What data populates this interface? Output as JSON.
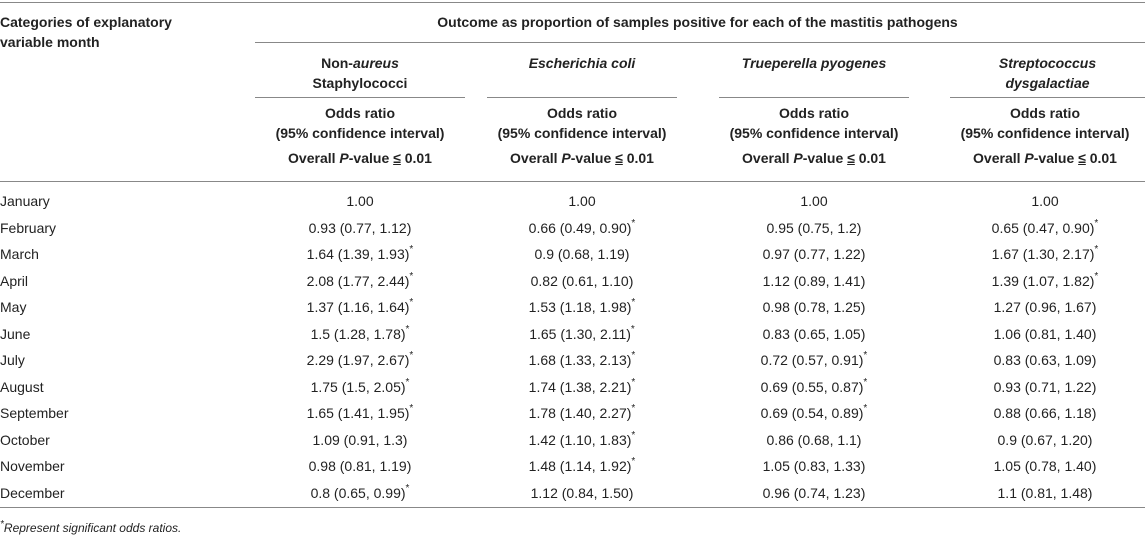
{
  "header": {
    "category_label_line1": "Categories of explanatory",
    "category_label_line2": "variable month",
    "title": "Outcome as proportion of samples positive for each of the mastitis pathogens"
  },
  "columns": [
    {
      "name_line1_pre": "Non-",
      "name_line1_italic": "aureus",
      "name_line2": "Staphylococci"
    },
    {
      "name_line1_italic": "Escherichia coli"
    },
    {
      "name_line1_italic": "Trueperella pyogenes"
    },
    {
      "name_line1_italic": "Streptococcus",
      "name_line2_italic": "dysgalactiae"
    }
  ],
  "subheader": {
    "odds_line1": "Odds ratio",
    "odds_line2": "(95% confidence interval)",
    "pval_pre": "Overall ",
    "pval_italic": "P",
    "pval_mid": "-value ",
    "pval_op": "≤",
    "pval_val": " 0.01"
  },
  "rows": [
    {
      "month": "January",
      "vals": [
        "1.00",
        "1.00",
        "1.00",
        "1.00"
      ],
      "sig": [
        false,
        false,
        false,
        false
      ]
    },
    {
      "month": "February",
      "vals": [
        "0.93 (0.77, 1.12)",
        "0.66 (0.49, 0.90)",
        "0.95 (0.75, 1.2)",
        "0.65 (0.47, 0.90)"
      ],
      "sig": [
        false,
        true,
        false,
        true
      ]
    },
    {
      "month": "March",
      "vals": [
        "1.64 (1.39, 1.93)",
        "0.9 (0.68, 1.19)",
        "0.97 (0.77, 1.22)",
        "1.67 (1.30, 2.17)"
      ],
      "sig": [
        true,
        false,
        false,
        true
      ]
    },
    {
      "month": "April",
      "vals": [
        "2.08 (1.77, 2.44)",
        "0.82 (0.61, 1.10)",
        "1.12 (0.89, 1.41)",
        "1.39 (1.07, 1.82)"
      ],
      "sig": [
        true,
        false,
        false,
        true
      ]
    },
    {
      "month": "May",
      "vals": [
        "1.37 (1.16, 1.64)",
        "1.53 (1.18, 1.98)",
        "0.98 (0.78, 1.25)",
        "1.27 (0.96, 1.67)"
      ],
      "sig": [
        true,
        true,
        false,
        false
      ]
    },
    {
      "month": "June",
      "vals": [
        "1.5 (1.28, 1.78)",
        "1.65 (1.30, 2.11)",
        "0.83 (0.65, 1.05)",
        "1.06 (0.81, 1.40)"
      ],
      "sig": [
        true,
        true,
        false,
        false
      ]
    },
    {
      "month": "July",
      "vals": [
        "2.29 (1.97, 2.67)",
        "1.68 (1.33, 2.13)",
        "0.72 (0.57, 0.91)",
        "0.83 (0.63, 1.09)"
      ],
      "sig": [
        true,
        true,
        true,
        false
      ]
    },
    {
      "month": "August",
      "vals": [
        "1.75 (1.5, 2.05)",
        "1.74 (1.38, 2.21)",
        "0.69 (0.55, 0.87)",
        "0.93 (0.71, 1.22)"
      ],
      "sig": [
        true,
        true,
        true,
        false
      ]
    },
    {
      "month": "September",
      "vals": [
        "1.65 (1.41, 1.95)",
        "1.78 (1.40, 2.27)",
        "0.69 (0.54, 0.89)",
        "0.88 (0.66, 1.18)"
      ],
      "sig": [
        true,
        true,
        true,
        false
      ]
    },
    {
      "month": "October",
      "vals": [
        "1.09 (0.91, 1.3)",
        "1.42 (1.10, 1.83)",
        "0.86 (0.68, 1.1)",
        "0.9 (0.67, 1.20)"
      ],
      "sig": [
        false,
        true,
        false,
        false
      ]
    },
    {
      "month": "November",
      "vals": [
        "0.98 (0.81, 1.19)",
        "1.48 (1.14, 1.92)",
        "1.05 (0.83, 1.33)",
        "1.05 (0.78, 1.40)"
      ],
      "sig": [
        false,
        true,
        false,
        false
      ]
    },
    {
      "month": "December",
      "vals": [
        "0.8 (0.65, 0.99)",
        "1.12 (0.84, 1.50)",
        "0.96 (0.74, 1.23)",
        "1.1 (0.81, 1.48)"
      ],
      "sig": [
        true,
        false,
        false,
        false
      ]
    }
  ],
  "star_glyph": "*",
  "footnote": {
    "star": "*",
    "text": "Represent significant odds ratios."
  }
}
